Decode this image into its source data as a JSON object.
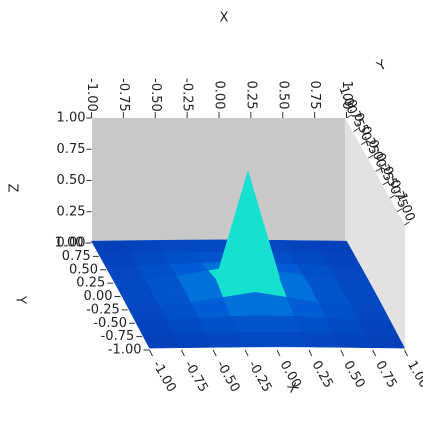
{
  "chart_data": {
    "type": "surface",
    "xlabel": "X",
    "ylabel": "Y",
    "zlabel": "Z",
    "x": [
      -1,
      -0.75,
      -0.5,
      -0.25,
      0,
      0.25,
      0.5,
      0.75,
      1
    ],
    "y": [
      -1,
      -0.75,
      -0.5,
      -0.25,
      0,
      0.25,
      0.5,
      0.75,
      1
    ],
    "z": [
      [
        0.015,
        0.018,
        0.021,
        0.024,
        0.025,
        0.024,
        0.021,
        0.018,
        0.015
      ],
      [
        0.018,
        0.022,
        0.028,
        0.033,
        0.035,
        0.033,
        0.028,
        0.022,
        0.018
      ],
      [
        0.021,
        0.028,
        0.04,
        0.055,
        0.06,
        0.055,
        0.04,
        0.028,
        0.021
      ],
      [
        0.024,
        0.033,
        0.055,
        0.1,
        0.14,
        0.1,
        0.055,
        0.033,
        0.024
      ],
      [
        0.025,
        0.035,
        0.06,
        0.14,
        1.0,
        0.14,
        0.06,
        0.035,
        0.025
      ],
      [
        0.024,
        0.033,
        0.055,
        0.1,
        0.14,
        0.1,
        0.055,
        0.033,
        0.024
      ],
      [
        0.021,
        0.028,
        0.04,
        0.055,
        0.06,
        0.055,
        0.04,
        0.028,
        0.021
      ],
      [
        0.018,
        0.022,
        0.028,
        0.033,
        0.035,
        0.033,
        0.028,
        0.022,
        0.018
      ],
      [
        0.015,
        0.018,
        0.021,
        0.024,
        0.025,
        0.024,
        0.021,
        0.018,
        0.015
      ]
    ],
    "xlim": [
      -1,
      1
    ],
    "ylim": [
      -1,
      1
    ],
    "zlim": [
      0,
      1
    ],
    "xticks": [
      {
        "value": -1,
        "label": "-1.00"
      },
      {
        "value": -0.75,
        "label": "-0.75"
      },
      {
        "value": -0.5,
        "label": "-0.50"
      },
      {
        "value": -0.25,
        "label": "-0.25"
      },
      {
        "value": 0,
        "label": "0.00"
      },
      {
        "value": 0.25,
        "label": "0.25"
      },
      {
        "value": 0.5,
        "label": "0.50"
      },
      {
        "value": 0.75,
        "label": "0.75"
      },
      {
        "value": 1,
        "label": "1.00"
      }
    ],
    "yticks": [
      {
        "value": -1,
        "label": "-1.00"
      },
      {
        "value": -0.75,
        "label": "-0.75"
      },
      {
        "value": -0.5,
        "label": "-0.50"
      },
      {
        "value": -0.25,
        "label": "-0.25"
      },
      {
        "value": 0,
        "label": "0.00"
      },
      {
        "value": 0.25,
        "label": "0.25"
      },
      {
        "value": 0.5,
        "label": "0.50"
      },
      {
        "value": 0.75,
        "label": "0.75"
      },
      {
        "value": 1,
        "label": "1.00"
      }
    ],
    "zticks": [
      {
        "value": 0,
        "label": "0.00"
      },
      {
        "value": 0.25,
        "label": "0.25"
      },
      {
        "value": 0.5,
        "label": "0.50"
      },
      {
        "value": 0.75,
        "label": "0.75"
      },
      {
        "value": 1,
        "label": "1.00"
      }
    ],
    "colormap": [
      "#0a1e9c",
      "#0060d8",
      "#00d8e8",
      "#60ff80",
      "#ffff00"
    ]
  }
}
